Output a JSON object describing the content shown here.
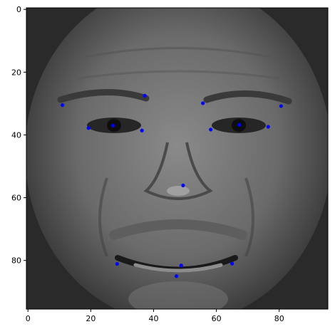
{
  "chart_data": {
    "type": "scatter",
    "title": "",
    "xlabel": "",
    "ylabel": "",
    "xlim": [
      -0.5,
      95.5
    ],
    "ylim": [
      95.5,
      -0.5
    ],
    "y_inverted": true,
    "grid": false,
    "background": "grayscale photograph of a smiling older man's face",
    "marker_color": "#0000ff",
    "x_ticks": [
      0,
      20,
      40,
      60,
      80
    ],
    "y_ticks": [
      0,
      20,
      40,
      60,
      80
    ],
    "x_tick_labels": [
      "0",
      "20",
      "40",
      "60",
      "80"
    ],
    "y_tick_labels": [
      "0",
      "20",
      "40",
      "60",
      "80"
    ],
    "points": [
      {
        "x": 11.0,
        "y": 30.5
      },
      {
        "x": 19.3,
        "y": 37.8
      },
      {
        "x": 27.1,
        "y": 37.0
      },
      {
        "x": 36.3,
        "y": 38.6
      },
      {
        "x": 37.2,
        "y": 27.5
      },
      {
        "x": 55.7,
        "y": 29.9
      },
      {
        "x": 58.2,
        "y": 38.3
      },
      {
        "x": 67.3,
        "y": 36.8
      },
      {
        "x": 76.5,
        "y": 37.4
      },
      {
        "x": 80.6,
        "y": 30.8
      },
      {
        "x": 49.4,
        "y": 56.1
      },
      {
        "x": 28.4,
        "y": 81.1
      },
      {
        "x": 48.8,
        "y": 81.6
      },
      {
        "x": 47.3,
        "y": 85.0
      },
      {
        "x": 65.0,
        "y": 81.0
      }
    ]
  }
}
